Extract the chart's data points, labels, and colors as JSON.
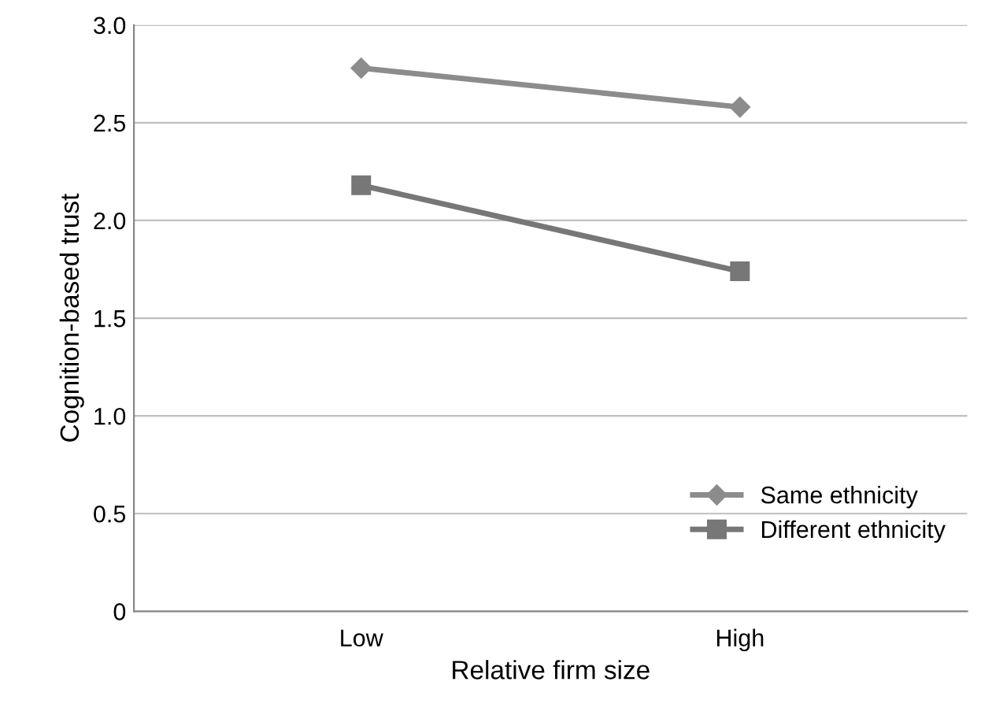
{
  "chart_data": {
    "type": "line",
    "xlabel": "Relative firm size",
    "ylabel": "Cognition-based trust",
    "categories": [
      "Low",
      "High"
    ],
    "series": [
      {
        "name": "Same ethnicity",
        "color": "#8c8c8c",
        "values": [
          2.78,
          2.58
        ],
        "marker": "diamond"
      },
      {
        "name": "Different ethnicity",
        "color": "#777777",
        "values": [
          2.18,
          1.74
        ],
        "marker": "square"
      }
    ],
    "ylim": [
      0,
      3.0
    ],
    "yticks": [
      0,
      0.5,
      {
        "value": 1,
        "label": "1.0"
      },
      1.5,
      {
        "value": 2,
        "label": "2.0"
      },
      2.5,
      {
        "value": 3,
        "label": "3.0"
      }
    ],
    "grid": "y",
    "legend": "bottom right",
    "line_style": "solid"
  }
}
